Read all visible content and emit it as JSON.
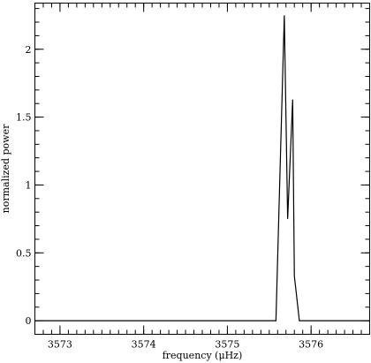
{
  "chart_data": {
    "type": "line",
    "title": "",
    "xlabel": "frequency (μHz)",
    "ylabel": "normalized power",
    "xlim": [
      3572.7,
      3576.7
    ],
    "ylim": [
      -0.1,
      2.34
    ],
    "x_ticks": [
      3573,
      3574,
      3575,
      3576
    ],
    "x_tick_labels": [
      "3573",
      "3574",
      "3575",
      "3576"
    ],
    "x_minor_step": 0.1,
    "y_ticks": [
      0,
      0.5,
      1,
      1.5,
      2
    ],
    "y_tick_labels": [
      "0",
      "0.5",
      "1",
      "1.5",
      "2"
    ],
    "y_minor_step": 0.1,
    "grid": false,
    "series": [
      {
        "x": [
          3572.7,
          3575.58,
          3575.68,
          3575.72,
          3575.78,
          3575.8,
          3575.86,
          3576.7
        ],
        "y": [
          0,
          0,
          2.25,
          0.75,
          1.63,
          0.33,
          0,
          0
        ]
      }
    ]
  }
}
